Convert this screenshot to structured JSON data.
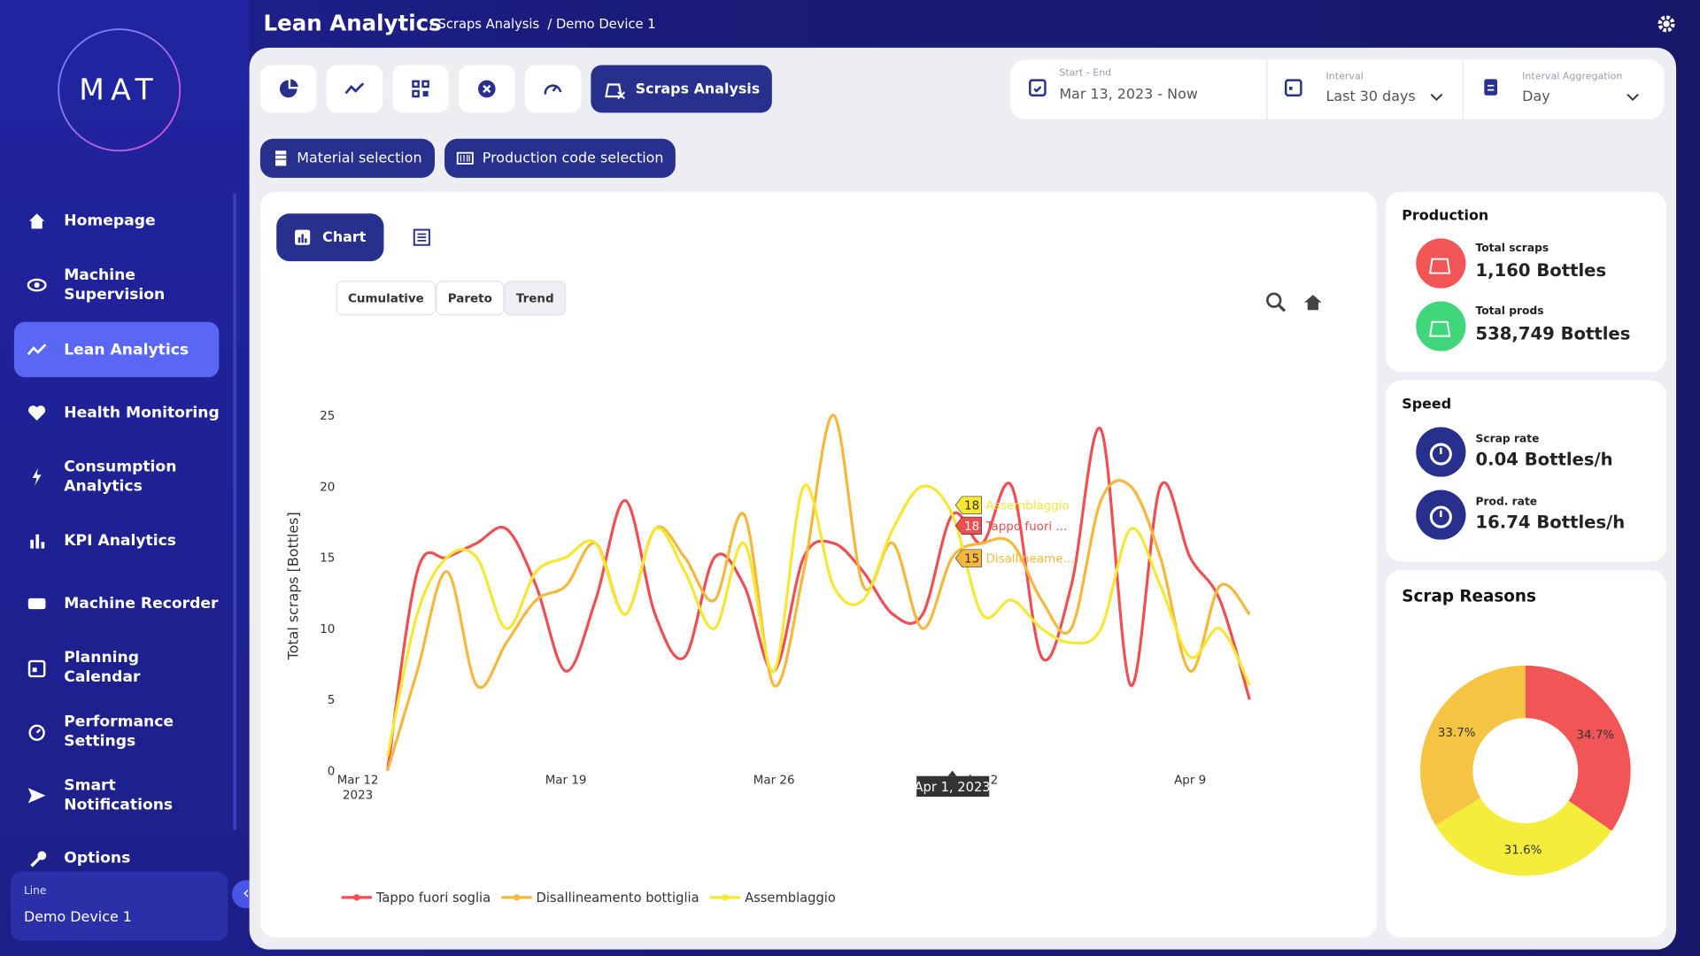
{
  "header": {
    "title": "Lean Analytics",
    "breadcrumb": [
      "/ Scraps Analysis",
      "/ Demo Device 1"
    ]
  },
  "sidebar": {
    "logo": "MAT",
    "menu": [
      "Homepage",
      "Machine Supervision",
      "Lean Analytics",
      "Health Monitoring",
      "Consumption Analytics",
      "KPI Analytics",
      "Machine Recorder",
      "Planning Calendar",
      "Performance Settings",
      "Smart Notifications",
      "Options"
    ],
    "line_selector": {
      "label": "Line",
      "value": "Demo Device 1"
    }
  },
  "toolbar": {
    "active_tab": "Scraps Analysis",
    "selectors": [
      "Material selection",
      "Production code selection"
    ]
  },
  "filters": [
    {
      "label": "Start - End",
      "value": "Mar 13, 2023 - Now"
    },
    {
      "label": "Interval",
      "value": "Last 30 days"
    },
    {
      "label": "Interval Aggregation",
      "value": "Day"
    }
  ],
  "chart_panel": {
    "view_tab": "Chart",
    "modes": [
      "Cumulative",
      "Pareto",
      "Trend"
    ],
    "hover": {
      "x_label": "Apr 1, 2023",
      "items": [
        {
          "value": 18,
          "label": "Assemblaggio"
        },
        {
          "value": 18,
          "label": "Tappo fuori ..."
        },
        {
          "value": 15,
          "label": "Disallineame..."
        }
      ]
    }
  },
  "production": {
    "title": "Production",
    "stats": [
      {
        "label": "Total scraps",
        "value": "1,160 Bottles"
      },
      {
        "label": "Total prods",
        "value": "538,749 Bottles"
      }
    ]
  },
  "speed": {
    "title": "Speed",
    "stats": [
      {
        "label": "Scrap rate",
        "value": "0.04 Bottles/h"
      },
      {
        "label": "Prod. rate",
        "value": "16.74 Bottles/h"
      }
    ]
  },
  "chart_data": [
    {
      "type": "line",
      "y_label": "Total scraps [Bottles]",
      "smooth": true,
      "grid": false,
      "legend": "bottom",
      "x": [
        "2023-03-13",
        "2023-03-14",
        "2023-03-15",
        "2023-03-16",
        "2023-03-17",
        "2023-03-18",
        "2023-03-19",
        "2023-03-20",
        "2023-03-21",
        "2023-03-22",
        "2023-03-23",
        "2023-03-24",
        "2023-03-25",
        "2023-03-26",
        "2023-03-27",
        "2023-03-28",
        "2023-03-29",
        "2023-03-30",
        "2023-03-31",
        "2023-04-01",
        "2023-04-02",
        "2023-04-03",
        "2023-04-04",
        "2023-04-05",
        "2023-04-06",
        "2023-04-07",
        "2023-04-08",
        "2023-04-09",
        "2023-04-10",
        "2023-04-11"
      ],
      "xlim": [
        "2023-03-12",
        "2023-04-12"
      ],
      "xticks": [
        {
          "value": "2023-03-12",
          "label": "Mar 12\n2023"
        },
        {
          "value": "2023-03-19",
          "label": "Mar 19"
        },
        {
          "value": "2023-03-26",
          "label": "Mar 26"
        },
        {
          "value": "2023-04-02",
          "label": "Apr 2"
        },
        {
          "value": "2023-04-09",
          "label": "Apr 9"
        }
      ],
      "ylim": [
        0,
        26
      ],
      "yticks": [
        0,
        5,
        10,
        15,
        20,
        25
      ],
      "series": [
        {
          "name": "Tappo fuori soglia",
          "color": "#ef4f52",
          "values": [
            0,
            14,
            15,
            16,
            17,
            13,
            7,
            12,
            19,
            11,
            8,
            15,
            13,
            7,
            15,
            16,
            14,
            11,
            11,
            18,
            16,
            20,
            8,
            13,
            24,
            6,
            20,
            15,
            12,
            5
          ]
        },
        {
          "name": "Disallineamento bottiglia",
          "color": "#f6b73c",
          "values": [
            0,
            7,
            14,
            6,
            9,
            12,
            13,
            16,
            11,
            17,
            15,
            12,
            18,
            6,
            14,
            25,
            13,
            16,
            10,
            15,
            16,
            16,
            12,
            10,
            19,
            20,
            15,
            7,
            13,
            11
          ]
        },
        {
          "name": "Assemblaggio",
          "color": "#f7e733",
          "values": [
            1,
            11,
            15,
            15,
            10,
            14,
            15,
            16,
            11,
            17,
            14,
            10,
            16,
            7,
            20,
            13,
            12,
            17,
            20,
            18,
            11,
            12,
            10,
            9,
            10,
            17,
            13,
            8,
            10,
            6
          ]
        }
      ]
    },
    {
      "type": "pie",
      "title": "Scrap Reasons",
      "hole": 0.5,
      "values": [
        34.7,
        31.6,
        33.7
      ],
      "value_labels": [
        "34.7%",
        "31.6%",
        "33.7%"
      ],
      "colors": [
        "#f25555",
        "#f5ed3c",
        "#f6c443"
      ]
    }
  ]
}
